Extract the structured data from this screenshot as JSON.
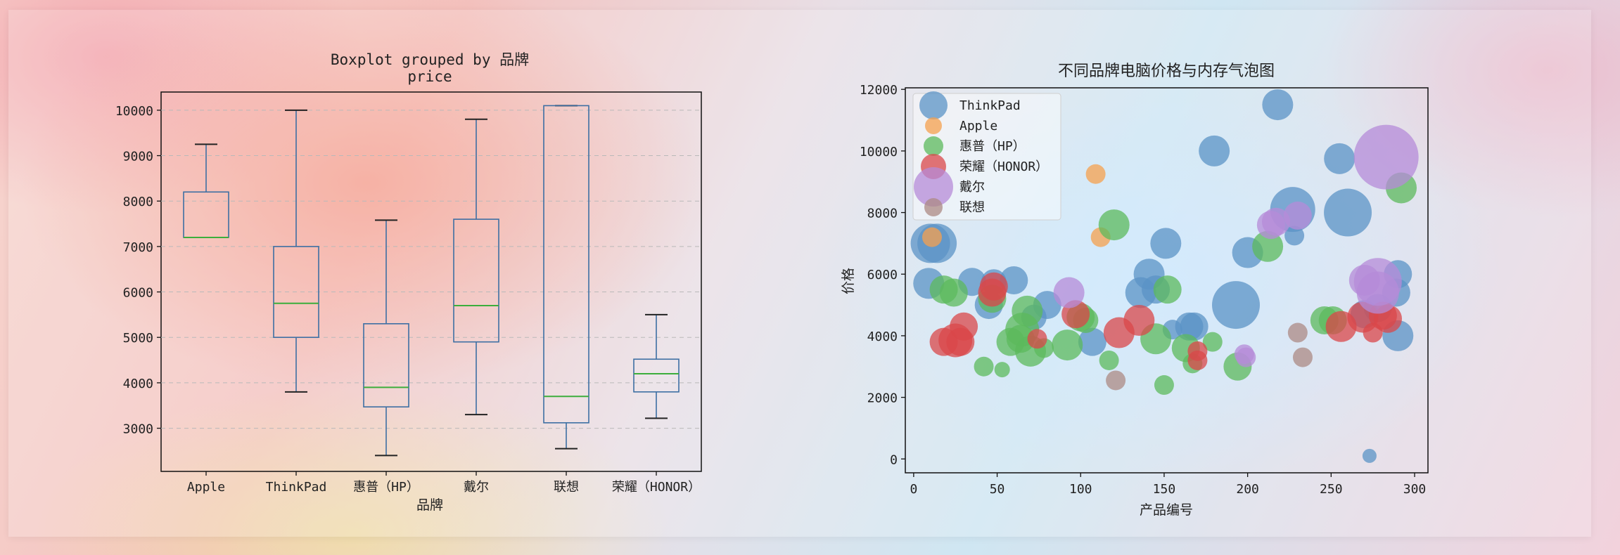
{
  "chart_data": [
    {
      "type": "boxplot",
      "title": "Boxplot grouped by 品牌",
      "subtitle": "price",
      "xlabel": "品牌",
      "ylabel": "",
      "ylim": [
        2050,
        10400
      ],
      "yticks": [
        3000,
        4000,
        5000,
        6000,
        7000,
        8000,
        9000,
        10000
      ],
      "grid": "horizontal",
      "categories": [
        "Apple",
        "ThinkPad",
        "惠普（HP）",
        "戴尔",
        "联想",
        "荣耀（HONOR）"
      ],
      "boxes": [
        {
          "min": 7200,
          "q1": 7200,
          "median": 7200,
          "q3": 8200,
          "max": 9250
        },
        {
          "min": 3800,
          "q1": 5000,
          "median": 5750,
          "q3": 7000,
          "max": 10000
        },
        {
          "min": 2400,
          "q1": 3470,
          "median": 3900,
          "q3": 5300,
          "max": 7580
        },
        {
          "min": 3300,
          "q1": 4900,
          "median": 5700,
          "q3": 7600,
          "max": 9800
        },
        {
          "min": 2550,
          "q1": 3120,
          "median": 3700,
          "q3": 10100,
          "max": 10100
        },
        {
          "min": 3220,
          "q1": 3800,
          "median": 4200,
          "q3": 4520,
          "max": 5500
        }
      ],
      "colors": {
        "box": "#3d6fa3",
        "median": "#3cae3c",
        "whisker_cap": "#222222"
      }
    },
    {
      "type": "scatter",
      "title": "不同品牌电脑价格与内存气泡图",
      "xlabel": "产品编号",
      "ylabel": "价格",
      "xlim": [
        -5,
        308
      ],
      "ylim": [
        -450,
        12050
      ],
      "xticks": [
        0,
        50,
        100,
        150,
        200,
        250,
        300
      ],
      "yticks": [
        0,
        2000,
        4000,
        6000,
        8000,
        10000,
        12000
      ],
      "legend_position": "upper-left",
      "series": [
        {
          "name": "ThinkPad",
          "color": "#5b93c6",
          "points": [
            [
              10,
              7000,
              28
            ],
            [
              14,
              7000,
              28
            ],
            [
              9,
              5700,
              22
            ],
            [
              35,
              5750,
              20
            ],
            [
              48,
              5750,
              18
            ],
            [
              60,
              5800,
              20
            ],
            [
              45,
              5000,
              20
            ],
            [
              72,
              4600,
              18
            ],
            [
              80,
              5000,
              20
            ],
            [
              107,
              3800,
              20
            ],
            [
              141,
              6000,
              22
            ],
            [
              136,
              5400,
              22
            ],
            [
              145,
              5500,
              20
            ],
            [
              151,
              7000,
              22
            ],
            [
              165,
              4300,
              20
            ],
            [
              168,
              4300,
              20
            ],
            [
              180,
              10000,
              22
            ],
            [
              193,
              5000,
              34
            ],
            [
              200,
              6700,
              22
            ],
            [
              218,
              11500,
              22
            ],
            [
              227,
              8100,
              32
            ],
            [
              228,
              7250,
              14
            ],
            [
              255,
              9750,
              22
            ],
            [
              260,
              8000,
              34
            ],
            [
              290,
              6000,
              20
            ],
            [
              289,
              5400,
              20
            ],
            [
              278,
              4900,
              20
            ],
            [
              270,
              4700,
              20
            ],
            [
              290,
              4000,
              22
            ],
            [
              273,
              100,
              10
            ],
            [
              155,
              4200,
              14
            ]
          ]
        },
        {
          "name": "Apple",
          "color": "#f5a04d",
          "points": [
            [
              11,
              7200,
              14
            ],
            [
              109,
              9250,
              14
            ],
            [
              112,
              7200,
              14
            ]
          ]
        },
        {
          "name": "惠普（HP）",
          "color": "#5cb95c",
          "points": [
            [
              18,
              5500,
              20
            ],
            [
              24,
              5400,
              20
            ],
            [
              42,
              3000,
              14
            ],
            [
              53,
              2900,
              11
            ],
            [
              47,
              5200,
              20
            ],
            [
              58,
              3800,
              20
            ],
            [
              68,
              4800,
              22
            ],
            [
              65,
              4200,
              24
            ],
            [
              64,
              3900,
              20
            ],
            [
              70,
              3500,
              22
            ],
            [
              78,
              3600,
              14
            ],
            [
              92,
              3700,
              22
            ],
            [
              100,
              4600,
              20
            ],
            [
              103,
              4500,
              18
            ],
            [
              117,
              3200,
              14
            ],
            [
              120,
              7600,
              22
            ],
            [
              145,
              3900,
              22
            ],
            [
              150,
              2400,
              14
            ],
            [
              152,
              5500,
              20
            ],
            [
              163,
              3600,
              20
            ],
            [
              167,
              3100,
              14
            ],
            [
              179,
              3800,
              14
            ],
            [
              194,
              3000,
              20
            ],
            [
              212,
              6900,
              22
            ],
            [
              246,
              4500,
              20
            ],
            [
              251,
              4500,
              20
            ],
            [
              292,
              8800,
              22
            ]
          ]
        },
        {
          "name": "荣耀（HONOR）",
          "color": "#d9474a",
          "points": [
            [
              18,
              3800,
              20
            ],
            [
              25,
              3850,
              24
            ],
            [
              28,
              3800,
              20
            ],
            [
              30,
              4300,
              20
            ],
            [
              47,
              5400,
              20
            ],
            [
              48,
              5600,
              20
            ],
            [
              74,
              3900,
              14
            ],
            [
              97,
              4700,
              20
            ],
            [
              123,
              4100,
              22
            ],
            [
              135,
              4500,
              22
            ],
            [
              170,
              3500,
              14
            ],
            [
              170,
              3200,
              14
            ],
            [
              256,
              4300,
              22
            ],
            [
              269,
              4600,
              22
            ],
            [
              275,
              4100,
              14
            ],
            [
              281,
              4650,
              20
            ],
            [
              284,
              4550,
              20
            ]
          ]
        },
        {
          "name": "戴尔",
          "color": "#b58bd8",
          "points": [
            [
              93,
              5400,
              22
            ],
            [
              198,
              3400,
              14
            ],
            [
              199,
              3300,
              14
            ],
            [
              214,
              7600,
              20
            ],
            [
              217,
              7700,
              20
            ],
            [
              230,
              7900,
              20
            ],
            [
              270,
              5800,
              22
            ],
            [
              278,
              5750,
              34
            ],
            [
              278,
              5400,
              30
            ],
            [
              283,
              9800,
              46
            ]
          ]
        },
        {
          "name": "联想",
          "color": "#ac8a84",
          "points": [
            [
              121,
              2550,
              14
            ],
            [
              230,
              4100,
              14
            ],
            [
              233,
              3300,
              14
            ]
          ]
        }
      ]
    }
  ]
}
